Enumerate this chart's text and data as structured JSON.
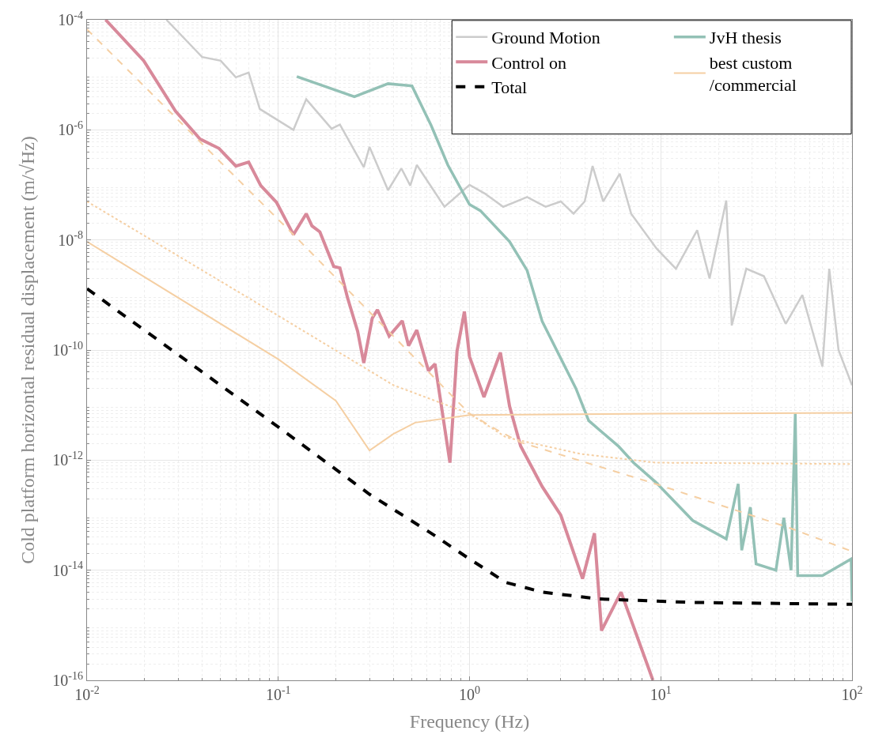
{
  "chart_data": {
    "type": "line",
    "xlabel": "Frequency (Hz)",
    "ylabel": "Cold platform horizontal residual displacement (m/√Hz)",
    "log": "xy",
    "grid": true,
    "legend": "top right",
    "xlim": [
      0.01,
      100
    ],
    "ylim": [
      1e-16,
      0.0001
    ],
    "xticks": [
      {
        "value": 0.01,
        "label": "10$^{-2}$"
      },
      {
        "value": 0.1,
        "label": "10$^{-1}$"
      },
      {
        "value": 1,
        "label": "10$^{0}$"
      },
      {
        "value": 10,
        "label": "10$^{1}$"
      },
      {
        "value": 100,
        "label": "10$^{2}$"
      }
    ],
    "yticks": [
      {
        "value": 1e-16,
        "label": "10$^{-16}$"
      },
      {
        "value": 1e-14,
        "label": "10$^{-14}$"
      },
      {
        "value": 1e-12,
        "label": "10$^{-12}$"
      },
      {
        "value": 1e-10,
        "label": "10$^{-10}$"
      },
      {
        "value": 1e-08,
        "label": "10$^{-8}$"
      },
      {
        "value": 1e-06,
        "label": "10$^{-6}$"
      },
      {
        "value": 0.0001,
        "label": "10$^{-4}$"
      }
    ],
    "series": [
      {
        "name": "Ground Motion",
        "color": "#cccccc",
        "line_style": "solid",
        "x": [
          0.026,
          0.04,
          0.05,
          0.06,
          0.07,
          0.08,
          0.12,
          0.14,
          0.19,
          0.21,
          0.28,
          0.3,
          0.375,
          0.44,
          0.49,
          0.53,
          0.74,
          1,
          1.2,
          1.5,
          2,
          2.5,
          3,
          3.5,
          4,
          4.4,
          5,
          6.1,
          7,
          9.5,
          12,
          15.5,
          18,
          22,
          23.5,
          28,
          34.6,
          45,
          55,
          70,
          76,
          85,
          100
        ],
        "values": [
          0.0001,
          2.1e-05,
          1.8e-05,
          9e-06,
          1.1e-05,
          2.4e-06,
          1e-06,
          3.6e-06,
          1.05e-06,
          1.25e-06,
          2.1e-07,
          4.9e-07,
          8e-08,
          2e-07,
          9.7e-08,
          2.3e-07,
          4e-08,
          1e-07,
          7e-08,
          4e-08,
          6e-08,
          4e-08,
          5e-08,
          3e-08,
          5e-08,
          2.2e-07,
          5e-08,
          1.6e-07,
          3e-08,
          7e-09,
          3e-09,
          1.5e-08,
          2e-09,
          5.2e-08,
          2.8e-10,
          3e-09,
          2.2e-09,
          3e-10,
          1e-09,
          5e-11,
          3e-09,
          1e-10,
          2.3e-11
        ]
      },
      {
        "name": "Control on",
        "color": "#d8899a",
        "line_style": "solid",
        "x": [
          0.0125,
          0.0198,
          0.029,
          0.039,
          0.049,
          0.06,
          0.07,
          0.081,
          0.098,
          0.12,
          0.14,
          0.15,
          0.165,
          0.195,
          0.21,
          0.23,
          0.26,
          0.28,
          0.31,
          0.33,
          0.38,
          0.445,
          0.48,
          0.53,
          0.61,
          0.66,
          0.79,
          0.86,
          0.94,
          1.0,
          1.19,
          1.45,
          1.62,
          1.85,
          2.4,
          3.0,
          3.9,
          4.5,
          4.9,
          6.2,
          9.1
        ],
        "values": [
          0.0001,
          1.8e-05,
          2.2e-06,
          6.8e-07,
          4.6e-07,
          2.2e-07,
          2.6e-07,
          9.7e-08,
          4.8e-08,
          1.25e-08,
          3e-08,
          1.8e-08,
          1.4e-08,
          3.3e-09,
          3.1e-09,
          9e-10,
          2.2e-10,
          5.8e-11,
          3.8e-10,
          5.4e-10,
          1.8e-10,
          3.4e-10,
          1.2e-10,
          2.3e-10,
          4.2e-11,
          5.6e-11,
          9e-13,
          9.5e-11,
          5e-10,
          7.6e-11,
          1.4e-11,
          9e-11,
          9.5e-12,
          1.8e-12,
          3.3e-13,
          1e-13,
          7e-15,
          4.7e-14,
          8e-16,
          4e-15,
          1e-16
        ]
      },
      {
        "name": "Total",
        "color": "#000000",
        "line_style": "dashed",
        "x": [
          0.01,
          0.1,
          0.3,
          0.63,
          1.0,
          1.55,
          2.4,
          4.8,
          14.6,
          100
        ],
        "values": [
          1.3e-09,
          4e-12,
          2.4e-13,
          4.7e-14,
          1.6e-14,
          6e-15,
          4e-15,
          3e-15,
          2.6e-15,
          2.4e-15
        ]
      },
      {
        "name": "JvH thesis",
        "color": "#93c1b6",
        "line_style": "solid",
        "x": [
          0.125,
          0.25,
          0.375,
          0.5,
          0.63,
          0.77,
          1.0,
          1.14,
          1.62,
          2.0,
          2.4,
          3.6,
          4.2,
          6.0,
          7.2,
          9.4,
          14.7,
          22,
          25.4,
          26.5,
          29.4,
          31.5,
          40,
          44,
          48,
          50.5,
          52,
          70,
          99,
          100
        ],
        "values": [
          9.3e-06,
          4e-06,
          6.9e-06,
          6.3e-06,
          1.2e-06,
          2.3e-07,
          4.4e-08,
          3.4e-08,
          9.3e-09,
          2.8e-09,
          3.3e-10,
          2e-11,
          5.2e-12,
          1.8e-12,
          9e-13,
          4e-13,
          8e-14,
          3.7e-14,
          3.7e-13,
          2.3e-14,
          1.4e-13,
          1.3e-14,
          1e-14,
          9e-14,
          1e-14,
          7e-12,
          8e-15,
          8e-15,
          1.6e-14,
          2.7e-15
        ]
      },
      {
        "name": "best custom\n/commercial",
        "color": "#f5cfa3",
        "line_style": "solid",
        "x": [
          0.01,
          0.1,
          0.2,
          0.3,
          0.4,
          0.52,
          1,
          10,
          100
        ],
        "values": [
          9.3e-09,
          6.8e-11,
          1.2e-11,
          1.5e-12,
          3e-12,
          4.8e-12,
          6.6e-12,
          7e-12,
          7.2e-12
        ]
      },
      {
        "color": "#f5cfa3",
        "line_style": "dashed",
        "x": [
          0.01,
          0.12,
          1,
          1.4,
          1.85,
          9.4,
          47,
          100
        ],
        "values": [
          6.7e-05,
          1.25e-08,
          7e-12,
          3.5e-12,
          2.1e-12,
          3.7e-13,
          5.9e-14,
          2.2e-14
        ]
      },
      {
        "color": "#f5cfa3",
        "line_style": "dotted",
        "x": [
          0.01,
          0.1,
          0.4,
          1,
          1.55,
          3.8,
          9.4,
          100
        ],
        "values": [
          5e-08,
          4.2e-10,
          2.3e-11,
          7e-12,
          2.6e-12,
          1.3e-12,
          9e-13,
          8.5e-13
        ]
      }
    ]
  }
}
